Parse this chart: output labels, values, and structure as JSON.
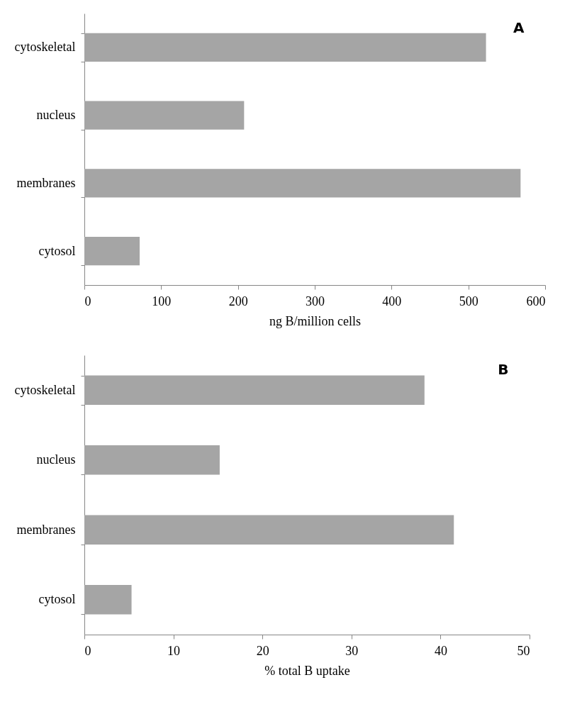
{
  "chart_data": [
    {
      "type": "bar",
      "orientation": "horizontal",
      "title": "A",
      "categories": [
        "cytoskeletal",
        "nucleus",
        "membranes",
        "cytosol"
      ],
      "values": [
        523,
        208,
        568,
        72
      ],
      "color": "#a5a5a5",
      "xlabel": "ng B/million cells",
      "xlim": [
        0,
        600
      ],
      "xticks": [
        0,
        100,
        200,
        300,
        400,
        500,
        600
      ]
    },
    {
      "type": "bar",
      "orientation": "horizontal",
      "title": "B",
      "categories": [
        "cytoskeletal",
        "nucleus",
        "membranes",
        "cytosol"
      ],
      "values": [
        38.2,
        15.2,
        41.5,
        5.3
      ],
      "color": "#a5a5a5",
      "xlabel": "% total B uptake",
      "xlim": [
        0,
        50
      ],
      "xticks": [
        0,
        10,
        20,
        30,
        40,
        50
      ]
    }
  ]
}
